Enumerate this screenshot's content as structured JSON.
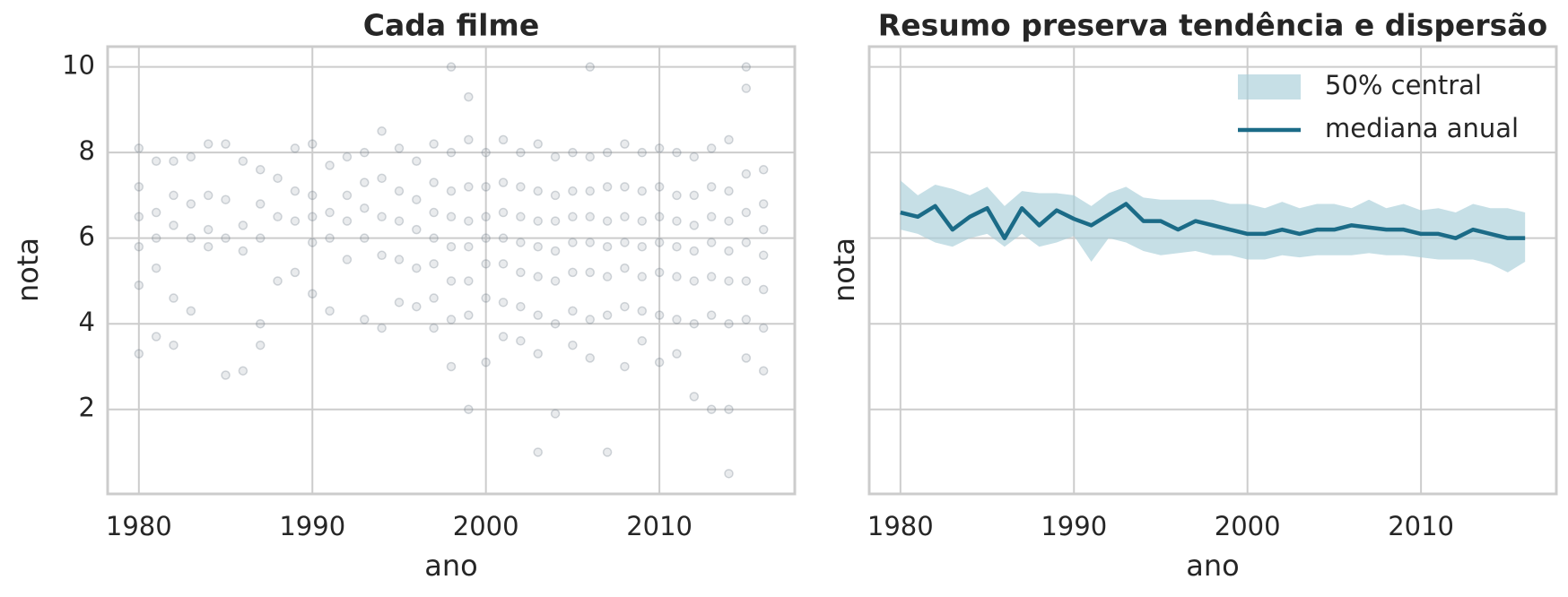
{
  "chart_data": [
    {
      "type": "scatter",
      "title": "Cada filme",
      "xlabel": "ano",
      "ylabel": "nota",
      "color": "#6c7a89",
      "grid": true,
      "xlim": [
        1978.2,
        2017.8
      ],
      "ylim": [
        0.025,
        10.475
      ],
      "xticks": [
        1980,
        1990,
        2000,
        2010
      ],
      "yticks": [
        2,
        4,
        6,
        8,
        10
      ],
      "x": [
        1980,
        1980,
        1980,
        1980,
        1980,
        1980,
        1981,
        1981,
        1981,
        1981,
        1981,
        1982,
        1982,
        1982,
        1982,
        1982,
        1983,
        1983,
        1983,
        1983,
        1984,
        1984,
        1984,
        1984,
        1985,
        1985,
        1985,
        1985,
        1986,
        1986,
        1986,
        1986,
        1987,
        1987,
        1987,
        1987,
        1987,
        1988,
        1988,
        1988,
        1989,
        1989,
        1989,
        1989,
        1990,
        1990,
        1990,
        1990,
        1990,
        1991,
        1991,
        1991,
        1991,
        1992,
        1992,
        1992,
        1992,
        1993,
        1993,
        1993,
        1993,
        1993,
        1994,
        1994,
        1994,
        1994,
        1994,
        1995,
        1995,
        1995,
        1995,
        1995,
        1996,
        1996,
        1996,
        1996,
        1996,
        1997,
        1997,
        1997,
        1997,
        1997,
        1997,
        1997,
        1998,
        1998,
        1998,
        1998,
        1998,
        1998,
        1998,
        1998,
        1999,
        1999,
        1999,
        1999,
        1999,
        1999,
        1999,
        1999,
        2000,
        2000,
        2000,
        2000,
        2000,
        2000,
        2000,
        2001,
        2001,
        2001,
        2001,
        2001,
        2001,
        2001,
        2002,
        2002,
        2002,
        2002,
        2002,
        2002,
        2002,
        2003,
        2003,
        2003,
        2003,
        2003,
        2003,
        2003,
        2003,
        2004,
        2004,
        2004,
        2004,
        2004,
        2004,
        2004,
        2005,
        2005,
        2005,
        2005,
        2005,
        2005,
        2005,
        2006,
        2006,
        2006,
        2006,
        2006,
        2006,
        2006,
        2006,
        2007,
        2007,
        2007,
        2007,
        2007,
        2007,
        2007,
        2008,
        2008,
        2008,
        2008,
        2008,
        2008,
        2008,
        2009,
        2009,
        2009,
        2009,
        2009,
        2009,
        2009,
        2010,
        2010,
        2010,
        2010,
        2010,
        2010,
        2010,
        2011,
        2011,
        2011,
        2011,
        2011,
        2011,
        2011,
        2012,
        2012,
        2012,
        2012,
        2012,
        2012,
        2012,
        2013,
        2013,
        2013,
        2013,
        2013,
        2013,
        2013,
        2014,
        2014,
        2014,
        2014,
        2014,
        2014,
        2014,
        2014,
        2015,
        2015,
        2015,
        2015,
        2015,
        2015,
        2015,
        2015,
        2016,
        2016,
        2016,
        2016,
        2016,
        2016,
        2016
      ],
      "y": [
        8.1,
        7.2,
        6.5,
        5.8,
        4.9,
        3.3,
        7.8,
        6.6,
        6.0,
        5.3,
        3.7,
        7.8,
        7.0,
        6.3,
        4.6,
        3.5,
        7.9,
        6.8,
        6.0,
        4.3,
        8.2,
        7.0,
        6.2,
        5.8,
        8.2,
        6.9,
        6.0,
        2.8,
        7.8,
        6.3,
        5.7,
        2.9,
        7.6,
        6.8,
        6.0,
        4.0,
        3.5,
        7.4,
        6.5,
        5.0,
        8.1,
        7.1,
        6.4,
        5.2,
        8.2,
        7.0,
        6.5,
        5.9,
        4.7,
        7.7,
        6.6,
        6.0,
        4.3,
        7.9,
        7.0,
        6.4,
        5.5,
        8.0,
        7.3,
        6.7,
        6.0,
        4.1,
        8.5,
        7.4,
        6.5,
        5.6,
        3.9,
        8.1,
        7.1,
        6.4,
        5.5,
        4.5,
        7.8,
        6.9,
        6.2,
        5.3,
        4.4,
        8.2,
        7.3,
        6.6,
        6.0,
        5.4,
        4.6,
        3.9,
        10.0,
        8.0,
        7.1,
        6.5,
        5.8,
        5.0,
        4.1,
        3.0,
        9.3,
        8.3,
        7.2,
        6.4,
        5.8,
        5.0,
        4.2,
        2.0,
        8.0,
        7.2,
        6.5,
        6.0,
        5.4,
        4.6,
        3.1,
        8.3,
        7.3,
        6.6,
        6.0,
        5.4,
        4.5,
        3.7,
        8.0,
        7.2,
        6.5,
        5.9,
        5.2,
        4.4,
        3.6,
        8.2,
        7.1,
        6.4,
        5.8,
        5.1,
        4.2,
        3.3,
        1.0,
        7.9,
        7.0,
        6.4,
        5.7,
        5.0,
        4.0,
        1.9,
        8.0,
        7.1,
        6.5,
        5.9,
        5.2,
        4.3,
        3.5,
        10.0,
        7.9,
        7.1,
        6.5,
        5.9,
        5.2,
        4.1,
        3.2,
        8.0,
        7.2,
        6.4,
        5.8,
        5.1,
        4.2,
        1.0,
        8.2,
        7.2,
        6.5,
        5.9,
        5.3,
        4.4,
        3.0,
        8.0,
        7.1,
        6.4,
        5.8,
        5.1,
        4.3,
        3.6,
        8.1,
        7.2,
        6.5,
        5.9,
        5.2,
        4.2,
        3.1,
        8.0,
        7.0,
        6.4,
        5.8,
        5.1,
        4.1,
        3.3,
        7.9,
        7.0,
        6.3,
        5.7,
        5.0,
        4.0,
        2.3,
        8.1,
        7.2,
        6.5,
        5.9,
        5.1,
        4.2,
        2.0,
        8.3,
        7.1,
        6.4,
        5.7,
        5.0,
        4.0,
        2.0,
        0.5,
        10.0,
        9.5,
        7.5,
        6.6,
        5.9,
        5.0,
        4.1,
        3.2,
        7.6,
        6.8,
        6.2,
        5.6,
        4.8,
        3.9,
        2.9
      ]
    },
    {
      "type": "line",
      "title": "Resumo preserva tendência e dispersão",
      "xlabel": "ano",
      "ylabel": "nota",
      "grid": true,
      "legend": "upper right",
      "xlim": [
        1978.2,
        2017.8
      ],
      "ylim": [
        0.025,
        10.475
      ],
      "xticks": [
        1980,
        1990,
        2000,
        2010
      ],
      "yticks": [
        2,
        4,
        6,
        8,
        10
      ],
      "x": [
        1980,
        1981,
        1982,
        1983,
        1984,
        1985,
        1986,
        1987,
        1988,
        1989,
        1990,
        1991,
        1992,
        1993,
        1994,
        1995,
        1996,
        1997,
        1998,
        1999,
        2000,
        2001,
        2002,
        2003,
        2004,
        2005,
        2006,
        2007,
        2008,
        2009,
        2010,
        2011,
        2012,
        2013,
        2014,
        2015,
        2016
      ],
      "band": {
        "name": "50% central",
        "color": "#a8ced9",
        "upper": [
          7.35,
          7.0,
          7.25,
          7.15,
          7.0,
          7.2,
          6.75,
          7.1,
          7.05,
          7.05,
          7.0,
          6.75,
          7.05,
          7.2,
          6.95,
          6.9,
          6.9,
          6.9,
          6.9,
          6.8,
          6.8,
          6.7,
          6.85,
          6.7,
          6.8,
          6.8,
          6.7,
          6.9,
          6.7,
          6.8,
          6.65,
          6.7,
          6.6,
          6.8,
          6.7,
          6.7,
          6.6
        ],
        "lower": [
          6.2,
          6.1,
          5.9,
          5.8,
          6.0,
          6.1,
          5.8,
          6.1,
          5.8,
          5.9,
          6.05,
          5.45,
          6.0,
          5.9,
          5.7,
          5.6,
          5.65,
          5.7,
          5.6,
          5.6,
          5.5,
          5.5,
          5.6,
          5.55,
          5.6,
          5.6,
          5.6,
          5.65,
          5.6,
          5.6,
          5.55,
          5.5,
          5.5,
          5.5,
          5.4,
          5.2,
          5.45
        ]
      },
      "series": [
        {
          "name": "mediana anual",
          "color": "#1b6b87",
          "values": [
            6.6,
            6.5,
            6.75,
            6.2,
            6.5,
            6.7,
            6.0,
            6.7,
            6.3,
            6.65,
            6.45,
            6.3,
            6.55,
            6.8,
            6.4,
            6.4,
            6.2,
            6.4,
            6.3,
            6.2,
            6.1,
            6.1,
            6.2,
            6.1,
            6.2,
            6.2,
            6.3,
            6.25,
            6.2,
            6.2,
            6.1,
            6.1,
            6.0,
            6.2,
            6.1,
            6.0,
            6.0
          ]
        }
      ]
    }
  ]
}
